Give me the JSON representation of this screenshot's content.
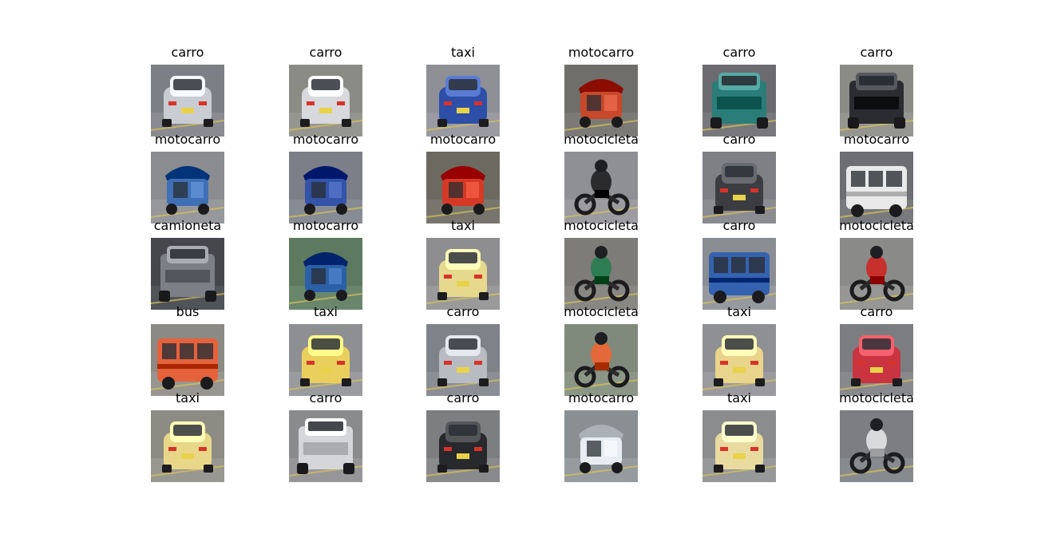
{
  "grid": {
    "cells": [
      {
        "label": "carro",
        "vehicle": "car-icon",
        "body_color": "#c9ccd2",
        "bg_color": "#7d7f86"
      },
      {
        "label": "carro",
        "vehicle": "car-icon",
        "body_color": "#d7d9dd",
        "bg_color": "#8a8b84"
      },
      {
        "label": "taxi",
        "vehicle": "car-icon",
        "body_color": "#2d4fa8",
        "bg_color": "#8e9096"
      },
      {
        "label": "motocarro",
        "vehicle": "motocarro-icon",
        "body_color": "#c8482c",
        "bg_color": "#6f6e6a"
      },
      {
        "label": "carro",
        "vehicle": "truck-icon",
        "body_color": "#2a7d78",
        "bg_color": "#6b6b70"
      },
      {
        "label": "carro",
        "vehicle": "truck-icon",
        "body_color": "#2a2c31",
        "bg_color": "#8b8b86"
      },
      {
        "label": "motocarro",
        "vehicle": "motocarro-icon",
        "body_color": "#3f6fb4",
        "bg_color": "#8a8c8f"
      },
      {
        "label": "motocarro",
        "vehicle": "motocarro-icon",
        "body_color": "#3354a8",
        "bg_color": "#7c7f88"
      },
      {
        "label": "motocarro",
        "vehicle": "motocarro-icon",
        "body_color": "#d43a25",
        "bg_color": "#6c6a60"
      },
      {
        "label": "motocicleta",
        "vehicle": "motorcycle-icon",
        "body_color": "#2b2b2d",
        "bg_color": "#8f9094"
      },
      {
        "label": "carro",
        "vehicle": "car-icon",
        "body_color": "#3b3d43",
        "bg_color": "#7f8086"
      },
      {
        "label": "motocarro",
        "vehicle": "bus-icon",
        "body_color": "#e9e9ea",
        "bg_color": "#6d6e72"
      },
      {
        "label": "camioneta",
        "vehicle": "truck-icon",
        "body_color": "#7c7f86",
        "bg_color": "#45474c"
      },
      {
        "label": "motocarro",
        "vehicle": "motocarro-icon",
        "body_color": "#2b5fa7",
        "bg_color": "#5d7a60"
      },
      {
        "label": "taxi",
        "vehicle": "car-icon",
        "body_color": "#e6d98e",
        "bg_color": "#8e8e90"
      },
      {
        "label": "motocicleta",
        "vehicle": "motorcycle-icon",
        "body_color": "#2f7d53",
        "bg_color": "#7d7c78"
      },
      {
        "label": "carro",
        "vehicle": "bus-icon",
        "body_color": "#3562ae",
        "bg_color": "#8a8d92"
      },
      {
        "label": "motocicleta",
        "vehicle": "motorcycle-icon",
        "body_color": "#c7302c",
        "bg_color": "#8a8a88"
      },
      {
        "label": "bus",
        "vehicle": "bus-icon",
        "body_color": "#e5623c",
        "bg_color": "#8c8a84"
      },
      {
        "label": "taxi",
        "vehicle": "car-icon",
        "body_color": "#e9cf5d",
        "bg_color": "#8e8f92"
      },
      {
        "label": "carro",
        "vehicle": "car-icon",
        "body_color": "#b8bbc1",
        "bg_color": "#80828a"
      },
      {
        "label": "motocicleta",
        "vehicle": "motorcycle-icon",
        "body_color": "#e3683a",
        "bg_color": "#7f8a7c"
      },
      {
        "label": "taxi",
        "vehicle": "car-icon",
        "body_color": "#e9d48b",
        "bg_color": "#8f9093"
      },
      {
        "label": "carro",
        "vehicle": "car-icon",
        "body_color": "#c93440",
        "bg_color": "#7c7d80"
      },
      {
        "label": "taxi",
        "vehicle": "car-icon",
        "body_color": "#e8d788",
        "bg_color": "#8d8c84"
      },
      {
        "label": "carro",
        "vehicle": "truck-icon",
        "body_color": "#d4d6da",
        "bg_color": "#8a8b8d"
      },
      {
        "label": "carro",
        "vehicle": "car-icon",
        "body_color": "#27292d",
        "bg_color": "#7d7e80"
      },
      {
        "label": "motocarro",
        "vehicle": "motocarro-icon",
        "body_color": "#e7eef3",
        "bg_color": "#8a8f93"
      },
      {
        "label": "taxi",
        "vehicle": "car-icon",
        "body_color": "#e9dba0",
        "bg_color": "#8b8c8e"
      },
      {
        "label": "motocicleta",
        "vehicle": "motorcycle-icon",
        "body_color": "#d9dadc",
        "bg_color": "#7c7e82"
      }
    ]
  }
}
